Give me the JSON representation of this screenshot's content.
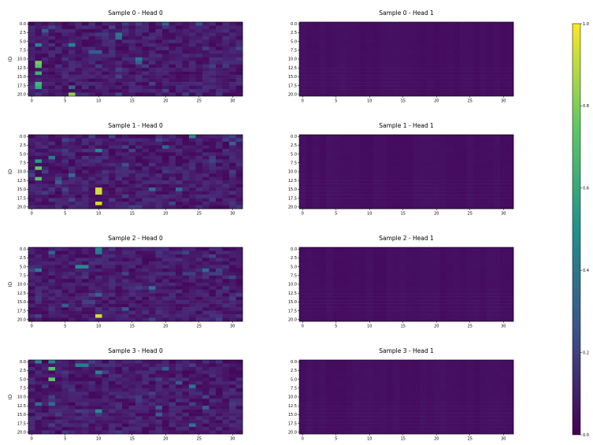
{
  "chart_data": {
    "type": "heatmap",
    "colormap": "viridis",
    "colorbar": {
      "range": [
        0.0,
        1.0
      ],
      "ticks": [
        "0.0",
        "0.2",
        "0.4",
        "0.6",
        "0.8",
        "1.0"
      ]
    },
    "x_ticks": [
      "0",
      "5",
      "10",
      "15",
      "20",
      "25",
      "30"
    ],
    "y_ticks": [
      "0.0",
      "2.5",
      "5.0",
      "7.5",
      "10.0",
      "12.5",
      "15.0",
      "17.5",
      "20.0"
    ],
    "ylabel": "ID",
    "x_range": [
      0,
      31
    ],
    "y_range": [
      0,
      20
    ],
    "panels": [
      {
        "title": "Sample 0 - Head 0",
        "row": 0,
        "col": 0,
        "hot": [
          [
            1,
            11,
            0.78
          ],
          [
            1,
            12,
            0.72
          ],
          [
            1,
            14,
            0.65
          ],
          [
            1,
            17,
            0.68
          ],
          [
            1,
            18,
            0.62
          ],
          [
            6,
            20,
            0.82
          ],
          [
            1,
            6,
            0.45
          ],
          [
            6,
            6,
            0.45
          ],
          [
            13,
            3,
            0.4
          ],
          [
            16,
            10,
            0.4
          ],
          [
            13,
            4,
            0.35
          ],
          [
            2,
            2,
            0.3
          ],
          [
            10,
            8,
            0.3
          ],
          [
            6,
            18,
            0.34
          ],
          [
            20,
            0,
            0.3
          ],
          [
            16,
            11,
            0.3
          ],
          [
            9,
            8,
            0.28
          ],
          [
            25,
            0,
            0.25
          ]
        ]
      },
      {
        "title": "Sample 0 - Head 1",
        "row": 0,
        "col": 1,
        "hot": []
      },
      {
        "title": "Sample 1 - Head 0",
        "row": 1,
        "col": 0,
        "hot": [
          [
            10,
            15,
            0.93
          ],
          [
            10,
            16,
            0.93
          ],
          [
            10,
            19,
            0.92
          ],
          [
            1,
            9,
            0.75
          ],
          [
            1,
            12,
            0.72
          ],
          [
            1,
            7,
            0.55
          ],
          [
            24,
            0,
            0.48
          ],
          [
            10,
            4,
            0.48
          ],
          [
            3,
            6,
            0.42
          ],
          [
            6,
            11,
            0.35
          ],
          [
            22,
            15,
            0.35
          ],
          [
            18,
            15,
            0.35
          ],
          [
            20,
            3,
            0.32
          ],
          [
            30,
            2,
            0.32
          ],
          [
            4,
            13,
            0.3
          ],
          [
            14,
            8,
            0.25
          ]
        ]
      },
      {
        "title": "Sample 1 - Head 1",
        "row": 1,
        "col": 1,
        "hot": []
      },
      {
        "title": "Sample 2 - Head 0",
        "row": 2,
        "col": 0,
        "hot": [
          [
            10,
            19,
            0.93
          ],
          [
            7,
            5,
            0.48
          ],
          [
            8,
            5,
            0.48
          ],
          [
            10,
            0,
            0.45
          ],
          [
            10,
            1,
            0.4
          ],
          [
            1,
            6,
            0.42
          ],
          [
            18,
            11,
            0.38
          ],
          [
            26,
            6,
            0.35
          ],
          [
            26,
            21,
            0.35
          ],
          [
            3,
            1,
            0.32
          ],
          [
            10,
            13,
            0.32
          ],
          [
            5,
            16,
            0.3
          ],
          [
            14,
            17,
            0.28
          ]
        ]
      },
      {
        "title": "Sample 2 - Head 1",
        "row": 2,
        "col": 1,
        "hot": []
      },
      {
        "title": "Sample 3 - Head 0",
        "row": 3,
        "col": 0,
        "hot": [
          [
            3,
            2,
            0.72
          ],
          [
            3,
            5,
            0.75
          ],
          [
            1,
            0,
            0.45
          ],
          [
            3,
            0,
            0.45
          ],
          [
            7,
            1,
            0.42
          ],
          [
            8,
            1,
            0.42
          ],
          [
            10,
            3,
            0.45
          ],
          [
            10,
            14,
            0.48
          ],
          [
            24,
            7,
            0.38
          ],
          [
            24,
            18,
            0.38
          ],
          [
            1,
            12,
            0.35
          ],
          [
            3,
            12,
            0.35
          ],
          [
            19,
            13,
            0.3
          ],
          [
            19,
            15,
            0.3
          ],
          [
            26,
            13,
            0.3
          ],
          [
            20,
            2,
            0.3
          ],
          [
            22,
            6,
            0.28
          ]
        ]
      },
      {
        "title": "Sample 3 - Head 1",
        "row": 3,
        "col": 1,
        "hot": []
      }
    ]
  }
}
